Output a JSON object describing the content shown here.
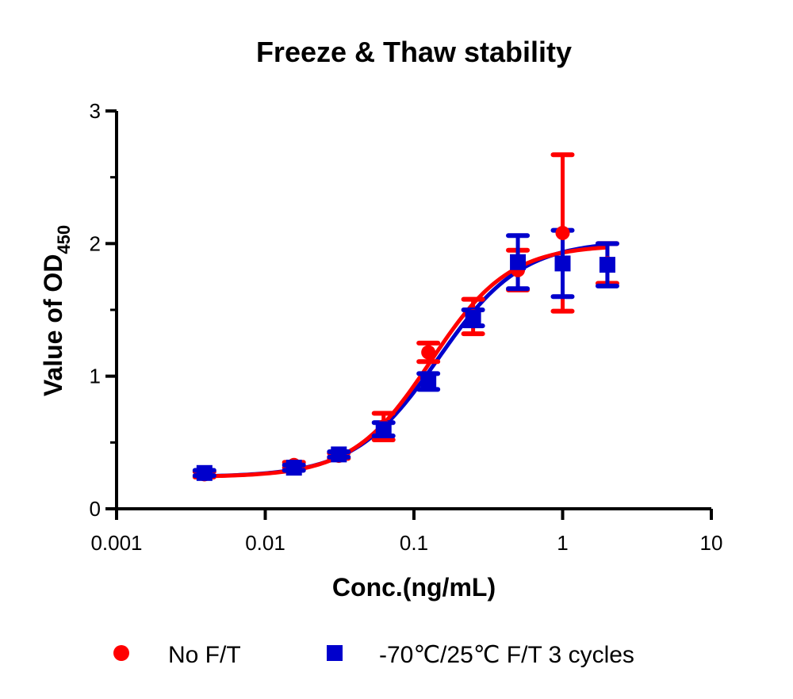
{
  "chart_data": {
    "type": "scatter",
    "title": "Freeze & Thaw stability",
    "xlabel": "Conc.(ng/mL)",
    "ylabel": "Value of OD",
    "ylabel_subscript": "450",
    "xscale": "log",
    "xlim": [
      0.001,
      10
    ],
    "ylim": [
      0,
      3
    ],
    "xticks": [
      "0.001",
      "0.01",
      "0.1",
      "1",
      "10"
    ],
    "yticks": [
      "0",
      "1",
      "2",
      "3"
    ],
    "legend_position": "bottom",
    "series": [
      {
        "name": "No F/T",
        "color": "#ff0000",
        "marker": "circle",
        "points": [
          {
            "x": 0.0039,
            "y": 0.26,
            "err": 0.02
          },
          {
            "x": 0.0156,
            "y": 0.33,
            "err": 0.02
          },
          {
            "x": 0.03125,
            "y": 0.4,
            "err": 0.02
          },
          {
            "x": 0.0625,
            "y": 0.62,
            "err": 0.1
          },
          {
            "x": 0.125,
            "y": 1.18,
            "err": 0.07
          },
          {
            "x": 0.25,
            "y": 1.45,
            "err": 0.13
          },
          {
            "x": 0.5,
            "y": 1.8,
            "err": 0.15
          },
          {
            "x": 1,
            "y": 2.08,
            "err": 0.59
          },
          {
            "x": 2,
            "y": 1.85,
            "err": 0.15
          }
        ],
        "fit": {
          "bottom": 0.24,
          "top": 1.99,
          "ec50": 0.13,
          "hill": 1.65
        }
      },
      {
        "name": "-70℃/25℃ F/T 3 cycles",
        "color": "#0000cc",
        "marker": "square",
        "points": [
          {
            "x": 0.0039,
            "y": 0.27,
            "err": 0.02
          },
          {
            "x": 0.0156,
            "y": 0.31,
            "err": 0.02
          },
          {
            "x": 0.03125,
            "y": 0.41,
            "err": 0.02
          },
          {
            "x": 0.0625,
            "y": 0.6,
            "err": 0.05
          },
          {
            "x": 0.125,
            "y": 0.96,
            "err": 0.06
          },
          {
            "x": 0.25,
            "y": 1.44,
            "err": 0.06
          },
          {
            "x": 0.5,
            "y": 1.86,
            "err": 0.2
          },
          {
            "x": 1,
            "y": 1.85,
            "err": 0.25
          },
          {
            "x": 2,
            "y": 1.84,
            "err": 0.16
          }
        ],
        "fit": {
          "bottom": 0.24,
          "top": 2.02,
          "ec50": 0.145,
          "hill": 1.55
        }
      }
    ]
  }
}
